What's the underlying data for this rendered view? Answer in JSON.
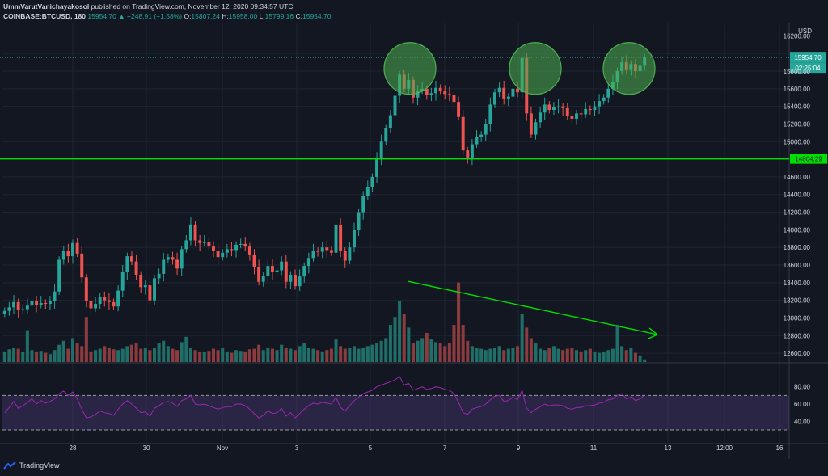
{
  "header": {
    "author": "UmmVarutVanichayakosol",
    "published_text": "published on TradingView.com, November 12, 2020 09:34:57 UTC",
    "symbol": "COINBASE:BTCUSD, 180",
    "last": "15954.70",
    "change": "▲ +248.91 (+1.58%)",
    "o_label": "O:",
    "o": "15807.24",
    "h_label": "H:",
    "h": "15958.00",
    "l_label": "L:",
    "l": "15799.16",
    "c_label": "C:",
    "c": "15954.70"
  },
  "footer": {
    "brand": "TradingView"
  },
  "colors": {
    "up": "#26a69a",
    "down": "#ef5350",
    "vol_up": "#1f6e68",
    "vol_down": "#8c3b3e",
    "support_line": "#00e000",
    "rsi_line": "#9c27b0",
    "grid": "#1f2433"
  },
  "chart_data": [
    {
      "type": "candlestick",
      "title": "",
      "currency_label": "USD",
      "ylim": [
        12500,
        16350
      ],
      "y_ticks": [
        12600,
        12800,
        13000,
        13200,
        13400,
        13600,
        13800,
        14000,
        14200,
        14400,
        14600,
        14800,
        15000,
        15200,
        15400,
        15600,
        15800,
        16000,
        16200
      ],
      "x_ticks": [
        "28",
        "30",
        "Nov",
        "3",
        "5",
        "7",
        "9",
        "11",
        "13",
        "12:00",
        "16"
      ],
      "last_price_label": "15954.70",
      "countdown_label": "02:25:04",
      "support_level": 14804.29,
      "support_label": "14804.29",
      "closes": [
        13080,
        13120,
        13180,
        13090,
        13100,
        13140,
        13190,
        13150,
        13170,
        13160,
        13190,
        13300,
        13660,
        13760,
        13700,
        13850,
        13730,
        13460,
        13190,
        13110,
        13160,
        13240,
        13200,
        13180,
        13130,
        13310,
        13520,
        13700,
        13640,
        13490,
        13350,
        13370,
        13200,
        13450,
        13500,
        13660,
        13690,
        13660,
        13560,
        13780,
        13880,
        14060,
        13880,
        13850,
        13860,
        13810,
        13760,
        13690,
        13740,
        13780,
        13770,
        13830,
        13840,
        13810,
        13720,
        13580,
        13410,
        13480,
        13590,
        13520,
        13540,
        13640,
        13410,
        13490,
        13360,
        13470,
        13590,
        13680,
        13760,
        13750,
        13800,
        13770,
        13740,
        14050,
        13760,
        13650,
        13800,
        14000,
        14200,
        14380,
        14480,
        14600,
        14820,
        15000,
        15150,
        15300,
        15520,
        15760,
        15600,
        15700,
        15500,
        15580,
        15600,
        15530,
        15550,
        15610,
        15580,
        15540,
        15530,
        15450,
        15280,
        14900,
        14820,
        14970,
        15050,
        15080,
        15200,
        15420,
        15560,
        15610,
        15490,
        15510,
        15600,
        15560,
        15950,
        15320,
        15080,
        15220,
        15330,
        15420,
        15360,
        15390,
        15400,
        15380,
        15290,
        15260,
        15320,
        15310,
        15370,
        15360,
        15400,
        15460,
        15500,
        15600,
        15680,
        15800,
        15900,
        15820,
        15880,
        15800,
        15860,
        15954.7
      ],
      "volume_ylim": [
        0,
        320
      ],
      "volumes": [
        40,
        48,
        55,
        50,
        38,
        120,
        45,
        40,
        42,
        35,
        30,
        45,
        65,
        80,
        50,
        90,
        70,
        60,
        170,
        40,
        45,
        50,
        60,
        55,
        48,
        45,
        50,
        60,
        65,
        70,
        50,
        55,
        45,
        55,
        70,
        80,
        60,
        50,
        45,
        75,
        95,
        55,
        45,
        40,
        38,
        42,
        50,
        45,
        55,
        40,
        35,
        45,
        42,
        40,
        48,
        50,
        65,
        45,
        55,
        50,
        45,
        65,
        55,
        50,
        45,
        60,
        70,
        55,
        50,
        45,
        40,
        45,
        50,
        85,
        60,
        50,
        55,
        60,
        50,
        55,
        60,
        65,
        70,
        80,
        90,
        140,
        170,
        230,
        180,
        130,
        70,
        80,
        90,
        110,
        85,
        75,
        70,
        60,
        70,
        140,
        300,
        140,
        80,
        60,
        55,
        50,
        45,
        50,
        55,
        60,
        45,
        50,
        55,
        60,
        180,
        130,
        90,
        70,
        50,
        45,
        55,
        60,
        50,
        45,
        50,
        55,
        45,
        40,
        45,
        50,
        40,
        35,
        40,
        45,
        50,
        140,
        60,
        45,
        55,
        35,
        25,
        10
      ],
      "rsi": {
        "ylim": [
          15,
          105
        ],
        "ticks": [
          40,
          60,
          80
        ],
        "band": [
          30,
          70
        ],
        "values": [
          50,
          56,
          63,
          55,
          58,
          62,
          66,
          60,
          64,
          61,
          63,
          66,
          72,
          75,
          70,
          74,
          66,
          54,
          44,
          45,
          48,
          52,
          50,
          49,
          47,
          54,
          60,
          64,
          60,
          55,
          50,
          51,
          46,
          55,
          58,
          62,
          63,
          61,
          57,
          64,
          66,
          70,
          60,
          59,
          60,
          58,
          56,
          54,
          56,
          57,
          57,
          60,
          60,
          58,
          54,
          49,
          44,
          47,
          52,
          49,
          50,
          55,
          46,
          50,
          44,
          49,
          54,
          58,
          61,
          60,
          62,
          61,
          60,
          68,
          56,
          52,
          58,
          64,
          68,
          72,
          74,
          76,
          80,
          82,
          84,
          86,
          88,
          92,
          82,
          84,
          76,
          78,
          80,
          77,
          78,
          80,
          79,
          77,
          76,
          72,
          62,
          50,
          48,
          54,
          56,
          57,
          60,
          65,
          69,
          70,
          63,
          64,
          68,
          65,
          76,
          55,
          50,
          54,
          57,
          60,
          58,
          59,
          59,
          58,
          55,
          54,
          56,
          56,
          58,
          58,
          59,
          61,
          62,
          65,
          66,
          70,
          72,
          66,
          68,
          64,
          66,
          70
        ]
      }
    }
  ]
}
